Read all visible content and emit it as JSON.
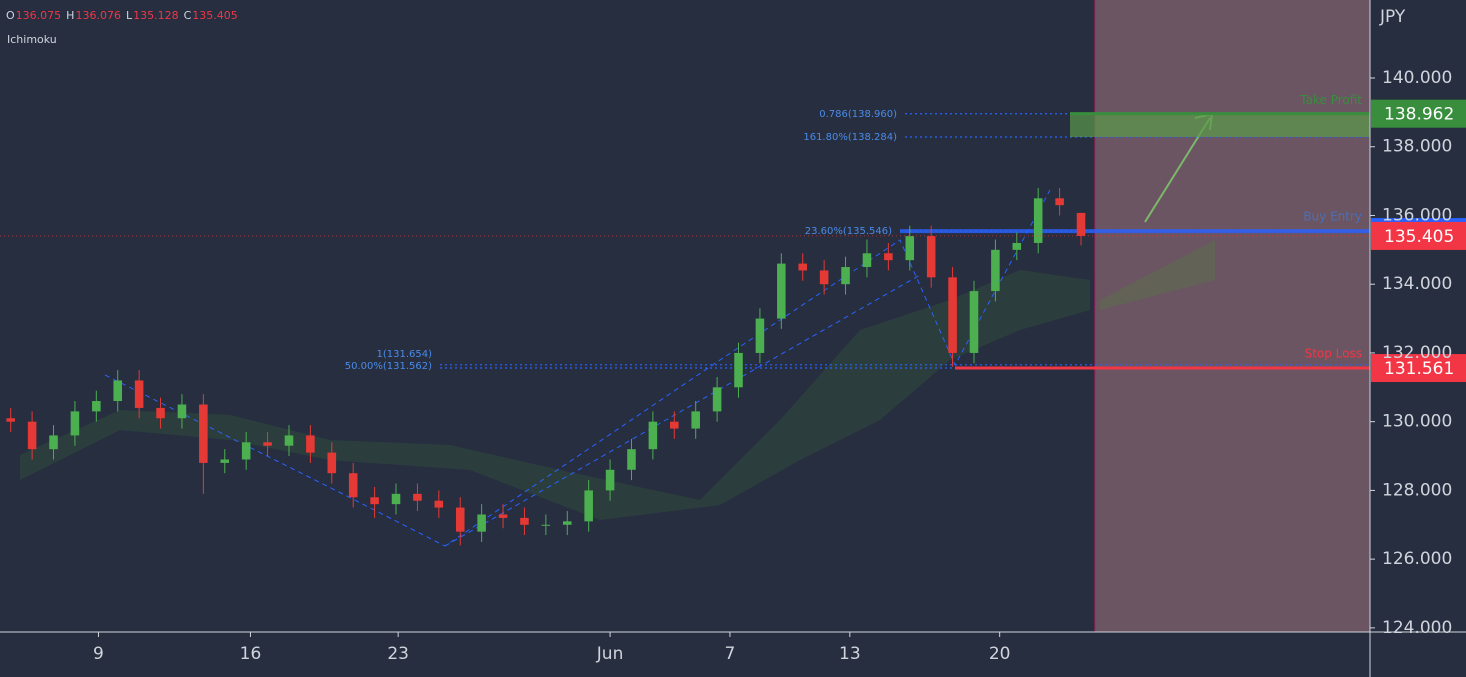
{
  "chart_data": {
    "type": "candlestick",
    "currency": "JPY",
    "indicator": "Ichimoku",
    "ohlc_labels": [
      "O",
      "H",
      "L",
      "C"
    ],
    "open": [
      130.1,
      130.0,
      129.2,
      129.6,
      130.3,
      130.6,
      131.2,
      130.4,
      130.1,
      130.5,
      128.8,
      128.9,
      129.4,
      129.3,
      129.6,
      129.1,
      128.5,
      127.8,
      127.6,
      127.9,
      127.7,
      127.5,
      126.8,
      127.3,
      127.2,
      127.0,
      127.0,
      127.1,
      128.0,
      128.6,
      129.2,
      130.0,
      129.8,
      130.3,
      131.0,
      132.0,
      133.0,
      134.6,
      134.4,
      134.0,
      134.5,
      134.9,
      134.7,
      135.4,
      134.2,
      132.0,
      133.8,
      135.0,
      135.2,
      136.5,
      136.075
    ],
    "high": [
      130.4,
      130.3,
      129.9,
      130.6,
      130.9,
      131.5,
      131.5,
      130.7,
      130.8,
      130.8,
      129.2,
      129.7,
      129.7,
      129.9,
      129.9,
      129.4,
      128.8,
      128.1,
      128.2,
      128.2,
      128.0,
      127.8,
      127.6,
      127.6,
      127.5,
      127.3,
      127.4,
      128.3,
      128.9,
      129.5,
      130.3,
      130.3,
      130.6,
      131.3,
      132.3,
      133.3,
      134.9,
      134.9,
      134.7,
      134.8,
      135.3,
      135.2,
      135.7,
      135.7,
      134.5,
      134.1,
      135.3,
      135.5,
      136.8,
      136.8,
      136.076
    ],
    "low": [
      129.7,
      128.9,
      128.9,
      129.3,
      130.0,
      130.3,
      130.1,
      129.8,
      129.8,
      127.9,
      128.5,
      128.6,
      129.0,
      129.0,
      128.8,
      128.2,
      127.5,
      127.2,
      127.3,
      127.4,
      127.2,
      126.4,
      126.5,
      126.9,
      126.7,
      126.7,
      126.7,
      126.8,
      127.7,
      128.3,
      128.9,
      129.5,
      129.5,
      130.0,
      130.7,
      131.7,
      132.7,
      134.1,
      133.7,
      133.7,
      134.2,
      134.4,
      134.4,
      133.9,
      131.6,
      131.7,
      133.5,
      134.7,
      134.9,
      136.0,
      135.128
    ],
    "close": [
      130.0,
      129.2,
      129.6,
      130.3,
      130.6,
      131.2,
      130.4,
      130.1,
      130.5,
      128.8,
      128.9,
      129.4,
      129.3,
      129.6,
      129.1,
      128.5,
      127.8,
      127.6,
      127.9,
      127.7,
      127.5,
      126.8,
      127.3,
      127.2,
      127.0,
      127.0,
      127.1,
      128.0,
      128.6,
      129.2,
      130.0,
      129.8,
      130.3,
      131.0,
      132.0,
      133.0,
      134.6,
      134.4,
      134.0,
      134.5,
      134.9,
      134.7,
      135.4,
      134.2,
      132.0,
      133.8,
      135.0,
      135.2,
      136.5,
      136.3,
      135.405
    ],
    "up_color": "#4caf50",
    "down_color": "#e53935",
    "xlim": [
      0,
      64
    ],
    "xticks": [
      {
        "value": 4.6,
        "label": "9"
      },
      {
        "value": 11.7,
        "label": "16"
      },
      {
        "value": 18.6,
        "label": "23"
      },
      {
        "value": 28.5,
        "label": "Jun"
      },
      {
        "value": 34.1,
        "label": "7"
      },
      {
        "value": 39.7,
        "label": "13"
      },
      {
        "value": 46.7,
        "label": "20"
      }
    ],
    "ylim": [
      123.88,
      142.27
    ],
    "yticks": [
      {
        "value": 124,
        "label": "124.000"
      },
      {
        "value": 126,
        "label": "126.000"
      },
      {
        "value": 128,
        "label": "128.000"
      },
      {
        "value": 130,
        "label": "130.000"
      },
      {
        "value": 132,
        "label": "132.000"
      },
      {
        "value": 134,
        "label": "134.000"
      },
      {
        "value": 136,
        "label": "136.000"
      },
      {
        "value": 138,
        "label": "138.000"
      },
      {
        "value": 140,
        "label": "140.000"
      }
    ],
    "fib_levels": [
      {
        "label": "0.786(138.960)",
        "value": 138.96
      },
      {
        "label": "161.80%(138.284)",
        "value": 138.284
      },
      {
        "label": "23.60%(135.546)",
        "value": 135.546
      },
      {
        "label": "1(131.654)",
        "value": 131.654
      },
      {
        "label": "50.00%(131.562)",
        "value": 131.562
      }
    ],
    "levels": [
      {
        "name": "Take Profit",
        "value": 138.962,
        "color": "#388e3c"
      },
      {
        "name": "Stop Loss",
        "value": 131.561,
        "color": "#f23645"
      }
    ],
    "buy_entry": {
      "name": "Buy Entry",
      "color": "#2962ff"
    }
  }
}
